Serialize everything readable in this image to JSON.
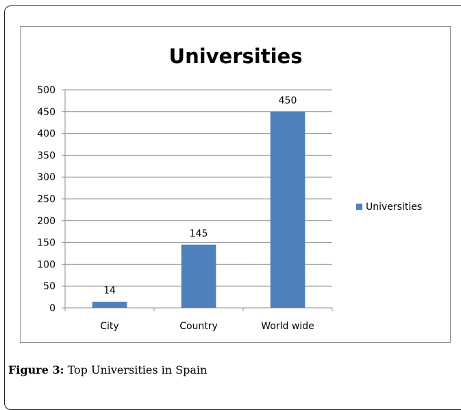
{
  "chart_data": {
    "type": "bar",
    "title": "Universities",
    "categories": [
      "City",
      "Country",
      "World wide"
    ],
    "series": [
      {
        "name": "Universities",
        "values": [
          14,
          145,
          450
        ],
        "color": "#4f81bd"
      }
    ],
    "data_labels": [
      "14",
      "145",
      "450"
    ],
    "ylim": [
      0,
      500
    ],
    "yticks": [
      0,
      50,
      100,
      150,
      200,
      250,
      300,
      350,
      400,
      450,
      500
    ],
    "grid": true,
    "legend_position": "right"
  },
  "caption": {
    "label": "Figure 3:",
    "text": " Top Universities in Spain"
  }
}
